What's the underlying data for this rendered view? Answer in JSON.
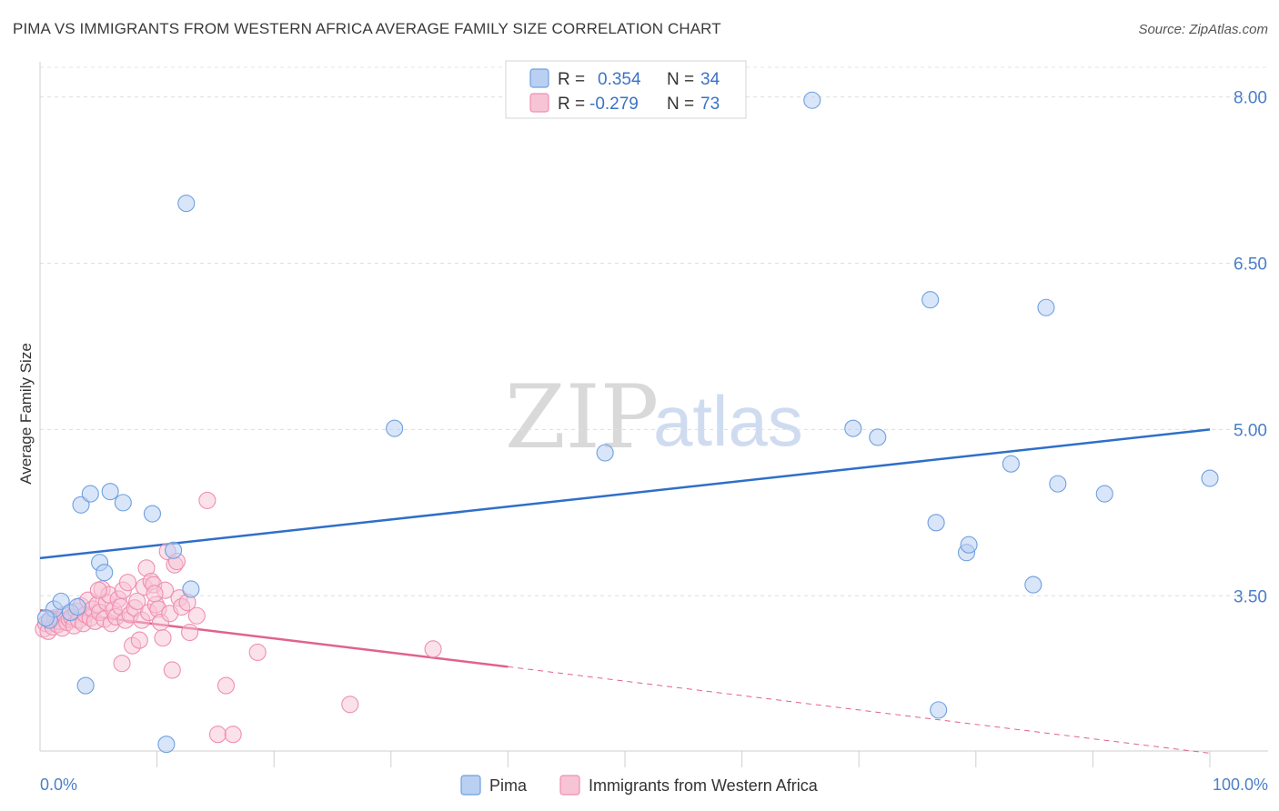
{
  "title": "PIMA VS IMMIGRANTS FROM WESTERN AFRICA AVERAGE FAMILY SIZE CORRELATION CHART",
  "source": "Source: ZipAtlas.com",
  "watermark": {
    "part1": "ZIP",
    "part2": "atlas"
  },
  "colors": {
    "pima": "#6fa0e0",
    "pima_fill": "#b9d0f2",
    "pima_line": "#2f6fc8",
    "wafrica": "#ef8fb0",
    "wafrica_fill": "#f7c4d6",
    "wafrica_line": "#e06290"
  },
  "legend": {
    "rows": [
      {
        "r_label": "R =",
        "r_value": "0.354",
        "n_label": "N =",
        "n_value": "34"
      },
      {
        "r_label": "R =",
        "r_value": "-0.279",
        "n_label": "N =",
        "n_value": "73"
      }
    ]
  },
  "bottom_legend": [
    "Pima",
    "Immigrants from Western Africa"
  ],
  "chart_data": {
    "type": "scatter",
    "title": "PIMA VS IMMIGRANTS FROM WESTERN AFRICA AVERAGE FAMILY SIZE CORRELATION CHART",
    "xlabel": "",
    "ylabel": "Average Family Size",
    "xlim": [
      0,
      100
    ],
    "ylim": [
      2.1,
      8.3
    ],
    "x_tick_labels": [
      "0.0%",
      "100.0%"
    ],
    "y_ticks": [
      3.5,
      5.0,
      6.5,
      8.0
    ],
    "y_tick_labels": [
      "3.50",
      "5.00",
      "6.50",
      "8.00"
    ],
    "grid": true,
    "series": [
      {
        "name": "Pima",
        "points": [
          [
            0.8,
            3.28
          ],
          [
            1.2,
            3.38
          ],
          [
            1.8,
            3.45
          ],
          [
            2.6,
            3.35
          ],
          [
            3.2,
            3.4
          ],
          [
            3.5,
            4.32
          ],
          [
            4.3,
            4.42
          ],
          [
            5.1,
            3.8
          ],
          [
            5.5,
            3.71
          ],
          [
            6.0,
            4.44
          ],
          [
            7.1,
            4.34
          ],
          [
            9.6,
            4.24
          ],
          [
            11.4,
            3.91
          ],
          [
            12.5,
            7.04
          ],
          [
            12.9,
            3.56
          ],
          [
            10.8,
            2.16
          ],
          [
            3.9,
            2.69
          ],
          [
            30.3,
            5.01
          ],
          [
            48.3,
            4.79
          ],
          [
            66.0,
            7.97
          ],
          [
            69.5,
            5.01
          ],
          [
            71.6,
            4.93
          ],
          [
            76.8,
            2.47
          ],
          [
            76.6,
            4.16
          ],
          [
            76.1,
            6.17
          ],
          [
            79.2,
            3.89
          ],
          [
            79.4,
            3.96
          ],
          [
            83.0,
            4.69
          ],
          [
            84.9,
            3.6
          ],
          [
            86.0,
            6.1
          ],
          [
            87.0,
            4.51
          ],
          [
            91.0,
            4.42
          ],
          [
            100.0,
            4.56
          ],
          [
            0.5,
            3.3
          ]
        ]
      },
      {
        "name": "Immigrants from Western Africa",
        "points": [
          [
            0.3,
            3.2
          ],
          [
            0.5,
            3.25
          ],
          [
            0.7,
            3.18
          ],
          [
            0.9,
            3.28
          ],
          [
            1.1,
            3.22
          ],
          [
            1.3,
            3.3
          ],
          [
            1.5,
            3.24
          ],
          [
            1.7,
            3.27
          ],
          [
            1.9,
            3.21
          ],
          [
            2.1,
            3.33
          ],
          [
            2.3,
            3.26
          ],
          [
            2.5,
            3.29
          ],
          [
            2.7,
            3.31
          ],
          [
            2.9,
            3.23
          ],
          [
            3.1,
            3.36
          ],
          [
            3.3,
            3.28
          ],
          [
            3.5,
            3.41
          ],
          [
            3.7,
            3.25
          ],
          [
            3.9,
            3.33
          ],
          [
            4.1,
            3.46
          ],
          [
            4.3,
            3.3
          ],
          [
            4.5,
            3.38
          ],
          [
            4.7,
            3.27
          ],
          [
            4.9,
            3.42
          ],
          [
            5.1,
            3.35
          ],
          [
            5.3,
            3.56
          ],
          [
            5.5,
            3.29
          ],
          [
            5.7,
            3.44
          ],
          [
            5.9,
            3.51
          ],
          [
            6.1,
            3.25
          ],
          [
            6.3,
            3.37
          ],
          [
            6.5,
            3.31
          ],
          [
            6.7,
            3.47
          ],
          [
            6.9,
            3.4
          ],
          [
            7.1,
            3.55
          ],
          [
            7.3,
            3.28
          ],
          [
            7.5,
            3.62
          ],
          [
            7.7,
            3.33
          ],
          [
            7.9,
            3.05
          ],
          [
            8.1,
            3.39
          ],
          [
            8.3,
            3.45
          ],
          [
            8.5,
            3.1
          ],
          [
            8.7,
            3.28
          ],
          [
            8.9,
            3.58
          ],
          [
            9.1,
            3.75
          ],
          [
            9.3,
            3.35
          ],
          [
            9.5,
            3.63
          ],
          [
            9.7,
            3.6
          ],
          [
            9.9,
            3.42
          ],
          [
            10.1,
            3.38
          ],
          [
            10.3,
            3.26
          ],
          [
            10.5,
            3.12
          ],
          [
            10.7,
            3.55
          ],
          [
            10.9,
            3.9
          ],
          [
            11.1,
            3.34
          ],
          [
            11.3,
            2.83
          ],
          [
            11.5,
            3.78
          ],
          [
            11.7,
            3.81
          ],
          [
            11.9,
            3.48
          ],
          [
            12.1,
            3.4
          ],
          [
            12.6,
            3.44
          ],
          [
            12.8,
            3.17
          ],
          [
            13.4,
            3.32
          ],
          [
            14.3,
            4.36
          ],
          [
            15.2,
            2.25
          ],
          [
            15.9,
            2.69
          ],
          [
            16.5,
            2.25
          ],
          [
            18.6,
            2.99
          ],
          [
            26.5,
            2.52
          ],
          [
            33.6,
            3.02
          ],
          [
            7.0,
            2.89
          ],
          [
            9.8,
            3.52
          ],
          [
            5.0,
            3.55
          ]
        ]
      }
    ],
    "trend_lines": [
      {
        "series": "Pima",
        "x": [
          0,
          100
        ],
        "y": [
          3.84,
          5.0
        ],
        "style": "solid"
      },
      {
        "series": "Immigrants from Western Africa",
        "x": [
          0,
          40
        ],
        "y": [
          3.37,
          2.86
        ],
        "style": "solid"
      },
      {
        "series": "Immigrants from Western Africa",
        "x": [
          40,
          100
        ],
        "y": [
          2.86,
          2.08
        ],
        "style": "dashed"
      }
    ]
  }
}
